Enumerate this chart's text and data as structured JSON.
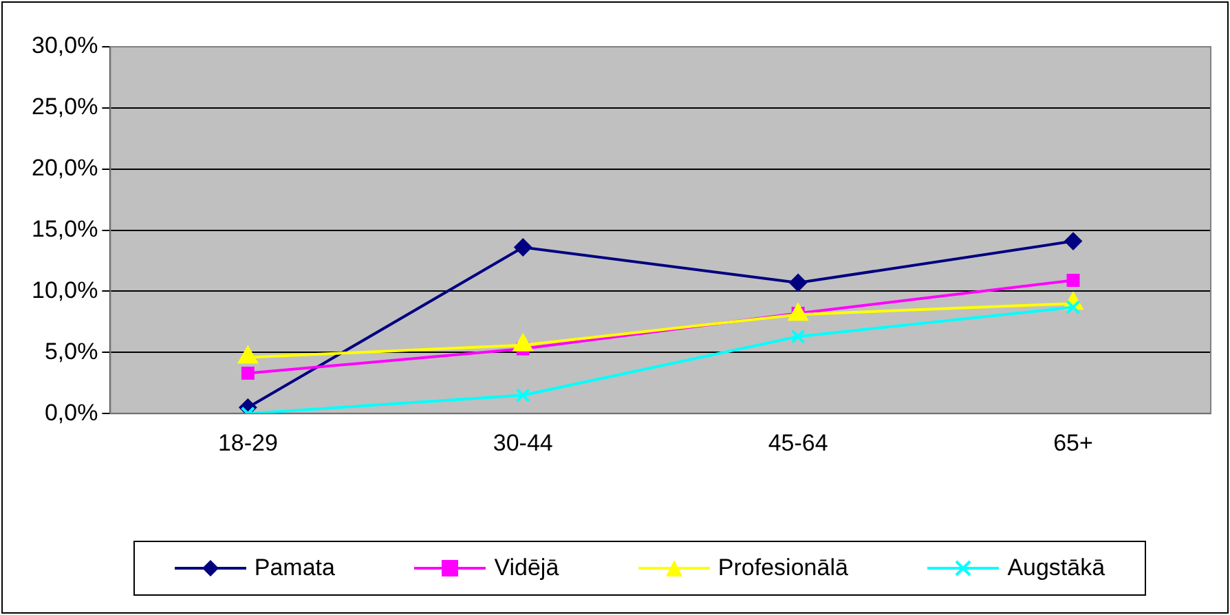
{
  "chart_data": {
    "type": "line",
    "categories": [
      "18-29",
      "30-44",
      "45-64",
      "65+"
    ],
    "series": [
      {
        "name": "Pamata",
        "color": "#000080",
        "marker": "diamond",
        "values": [
          0.5,
          13.6,
          10.7,
          14.1
        ]
      },
      {
        "name": "Vidējā",
        "color": "#ff00ff",
        "marker": "square",
        "values": [
          3.3,
          5.3,
          8.2,
          10.9
        ]
      },
      {
        "name": "Profesionālā",
        "color": "#ffff00",
        "marker": "triangle",
        "values": [
          4.6,
          5.6,
          8.1,
          9.0
        ]
      },
      {
        "name": "Augstākā",
        "color": "#00ffff",
        "marker": "cross",
        "values": [
          0.0,
          1.5,
          6.3,
          8.7
        ]
      }
    ],
    "ylim": [
      0,
      30
    ],
    "yticks": [
      {
        "value": 0,
        "label": "0,0%"
      },
      {
        "value": 5,
        "label": "5,0%"
      },
      {
        "value": 10,
        "label": "10,0%"
      },
      {
        "value": 15,
        "label": "15,0%"
      },
      {
        "value": 20,
        "label": "20,0%"
      },
      {
        "value": 25,
        "label": "25,0%"
      },
      {
        "value": 30,
        "label": "30,0%"
      }
    ],
    "grid": "y",
    "legend": "bottom",
    "line_style": "solid"
  }
}
